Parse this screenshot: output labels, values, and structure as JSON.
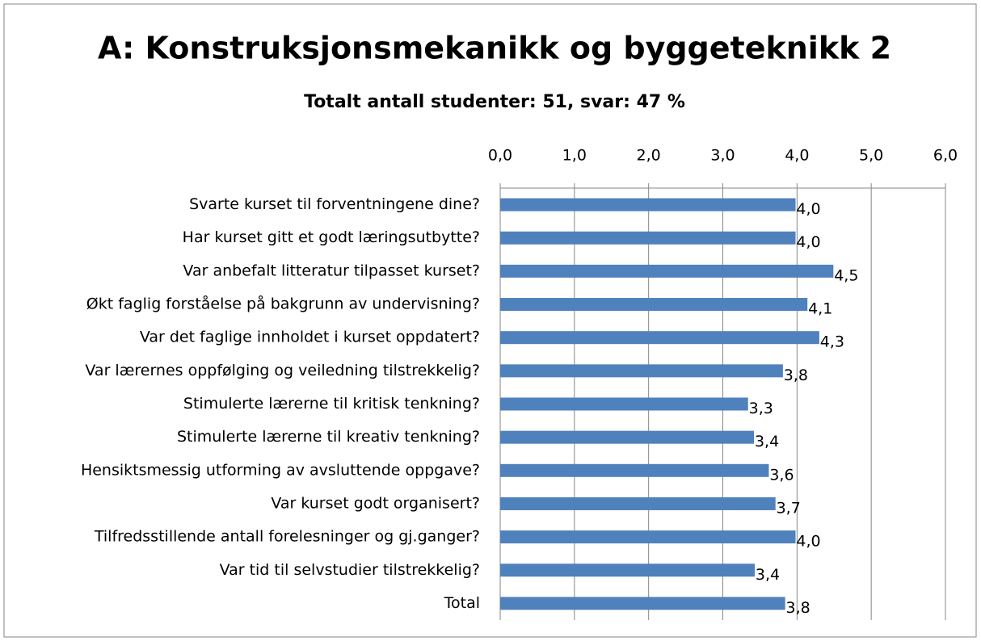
{
  "chart_data": {
    "type": "bar",
    "orientation": "horizontal",
    "title": "A: Konstruksjonsmekanikk og byggeteknikk 2",
    "subtitle": "Totalt antall studenter: 51, svar: 47 %",
    "categories": [
      "Svarte kurset til forventningene dine?",
      "Har kurset gitt et godt læringsutbytte?",
      "Var anbefalt litteratur tilpasset kurset?",
      "Økt faglig forståelse på bakgrunn av undervisning?",
      "Var det faglige innholdet i kurset oppdatert?",
      "Var lærernes oppfølging og veiledning tilstrekkelig?",
      "Stimulerte lærerne til kritisk tenkning?",
      "Stimulerte lærerne til kreativ tenkning?",
      "Hensiktsmessig utforming av avsluttende oppgave?",
      "Var kurset godt organisert?",
      "Tilfredsstillende antall forelesninger og gj.ganger?",
      "Var tid til selvstudier tilstrekkelig?",
      "Total"
    ],
    "values": [
      3.98,
      3.98,
      4.49,
      4.14,
      4.3,
      3.81,
      3.34,
      3.42,
      3.62,
      3.71,
      3.98,
      3.43,
      3.84
    ],
    "value_labels": [
      "4,0",
      "4,0",
      "4,5",
      "4,1",
      "4,3",
      "3,8",
      "3,3",
      "3,4",
      "3,6",
      "3,7",
      "4,0",
      "3,4",
      "3,8"
    ],
    "color": "#4f81bd",
    "xlim": [
      0,
      6
    ],
    "xticks": [
      {
        "value": 0,
        "label": "0,0"
      },
      {
        "value": 1,
        "label": "1,0"
      },
      {
        "value": 2,
        "label": "2,0"
      },
      {
        "value": 3,
        "label": "3,0"
      },
      {
        "value": 4,
        "label": "4,0"
      },
      {
        "value": 5,
        "label": "5,0"
      },
      {
        "value": 6,
        "label": "6,0"
      }
    ],
    "grid": true
  }
}
